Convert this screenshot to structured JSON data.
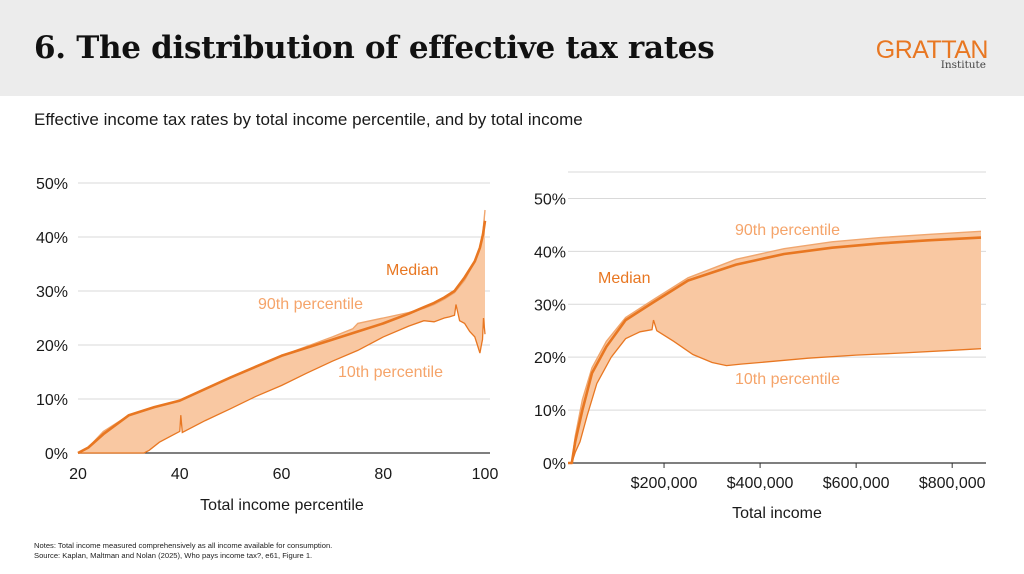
{
  "header": {
    "title": "6. The distribution of effective tax rates"
  },
  "logo": {
    "word": "GRATTAN",
    "sub": "Institute"
  },
  "subtitle": "Effective income tax rates by total income percentile, and by total income",
  "notes": {
    "line1": "Notes: Total income measured comprehensively as all income available for consumption.",
    "line2": "Source: Kaplan, Maltman and Nolan (2025), Who pays income tax?, e61, Figure 1."
  },
  "colors": {
    "median": "#e87722",
    "band_fill": "#f9c8a2",
    "band_edge": "#f0a66e",
    "label_light": "#f5a46a",
    "grid": "#d9d9d9"
  },
  "chart_data": [
    {
      "type": "area",
      "title": "",
      "xlabel": "Total income percentile",
      "ylabel": "",
      "xlim": [
        20,
        100
      ],
      "ylim": [
        0,
        50
      ],
      "x_ticks": [
        20,
        40,
        60,
        80,
        100
      ],
      "x_tick_labels": [
        "20",
        "40",
        "60",
        "80",
        "100"
      ],
      "y_ticks": [
        0,
        10,
        20,
        30,
        40,
        50
      ],
      "y_tick_labels": [
        "0%",
        "10%",
        "20%",
        "30%",
        "40%",
        "50%"
      ],
      "grid": true,
      "annotations": {
        "median": "Median",
        "p90": "90th percentile",
        "p10": "10th percentile"
      },
      "series": [
        {
          "name": "90th percentile",
          "x": [
            20,
            22,
            25,
            30,
            35,
            40,
            50,
            60,
            70,
            74,
            75,
            80,
            85,
            88,
            90,
            92,
            94,
            96,
            98,
            99,
            99.6,
            100
          ],
          "values": [
            0,
            1,
            4,
            7,
            8.5,
            9.7,
            14,
            18,
            21.5,
            23,
            24,
            25,
            26,
            26.8,
            27.5,
            28.5,
            29.7,
            32,
            35.5,
            38,
            41,
            45
          ]
        },
        {
          "name": "Median",
          "x": [
            20,
            22,
            25,
            30,
            35,
            40,
            50,
            60,
            70,
            75,
            80,
            85,
            88,
            90,
            92,
            94,
            96,
            98,
            99,
            99.6,
            100
          ],
          "values": [
            0,
            1,
            3.5,
            7,
            8.5,
            9.7,
            14,
            18,
            21,
            22.5,
            24,
            25.8,
            27,
            27.8,
            28.8,
            30,
            32.5,
            35.5,
            38,
            40.5,
            43
          ]
        },
        {
          "name": "10th percentile",
          "x": [
            20,
            30,
            33,
            34,
            36,
            39,
            40,
            40.2,
            40.5,
            45,
            50,
            55,
            60,
            65,
            70,
            75,
            80,
            85,
            88,
            90,
            92,
            93,
            94,
            94.3,
            95,
            96,
            97,
            98,
            98.5,
            99,
            99.3,
            99.5,
            99.7,
            100
          ],
          "values": [
            0,
            0,
            0,
            0.5,
            2,
            3.5,
            4,
            7,
            3.8,
            6,
            8.2,
            10.5,
            12.5,
            14.8,
            17,
            19,
            21.5,
            23.5,
            24.5,
            24.3,
            25,
            25.2,
            25.5,
            27.5,
            24.5,
            24,
            22.5,
            21.5,
            20,
            18.5,
            20,
            21,
            25,
            22
          ]
        }
      ]
    },
    {
      "type": "area",
      "title": "",
      "xlabel": "Total income",
      "ylabel": "",
      "xlim": [
        0,
        860000
      ],
      "ylim": [
        0,
        55
      ],
      "x_ticks": [
        200000,
        400000,
        600000,
        800000
      ],
      "x_tick_labels": [
        "$200,000",
        "$400,000",
        "$600,000",
        "$800,000"
      ],
      "y_ticks": [
        0,
        10,
        20,
        30,
        40,
        50
      ],
      "y_tick_labels": [
        "0%",
        "10%",
        "20%",
        "30%",
        "40%",
        "50%"
      ],
      "grid": true,
      "annotations": {
        "median": "Median",
        "p90": "90th percentile",
        "p10": "10th percentile"
      },
      "series": [
        {
          "name": "90th percentile",
          "x": [
            0,
            8000,
            15000,
            30000,
            50000,
            80000,
            120000,
            180000,
            250000,
            350000,
            450000,
            550000,
            650000,
            750000,
            860000
          ],
          "values": [
            0,
            0,
            5,
            12,
            18,
            23,
            27.5,
            31,
            35,
            38.5,
            40.5,
            41.8,
            42.6,
            43.2,
            43.8
          ]
        },
        {
          "name": "Median",
          "x": [
            0,
            8000,
            15000,
            30000,
            50000,
            80000,
            120000,
            180000,
            250000,
            350000,
            450000,
            550000,
            650000,
            750000,
            860000
          ],
          "values": [
            0,
            0,
            4,
            10,
            17,
            22,
            27,
            30.5,
            34.5,
            37.5,
            39.5,
            40.7,
            41.5,
            42.1,
            42.6
          ]
        },
        {
          "name": "10th percentile",
          "x": [
            0,
            8000,
            15000,
            25000,
            40000,
            60000,
            90000,
            120000,
            150000,
            175000,
            178000,
            185000,
            220000,
            260000,
            300000,
            330000,
            360000,
            400000,
            500000,
            600000,
            700000,
            800000,
            860000
          ],
          "values": [
            0,
            0,
            2,
            4,
            9,
            15,
            20,
            23.5,
            24.8,
            25.2,
            27,
            25,
            23,
            20.5,
            19,
            18.4,
            18.7,
            19,
            19.8,
            20.4,
            20.8,
            21.3,
            21.6
          ]
        }
      ]
    }
  ]
}
